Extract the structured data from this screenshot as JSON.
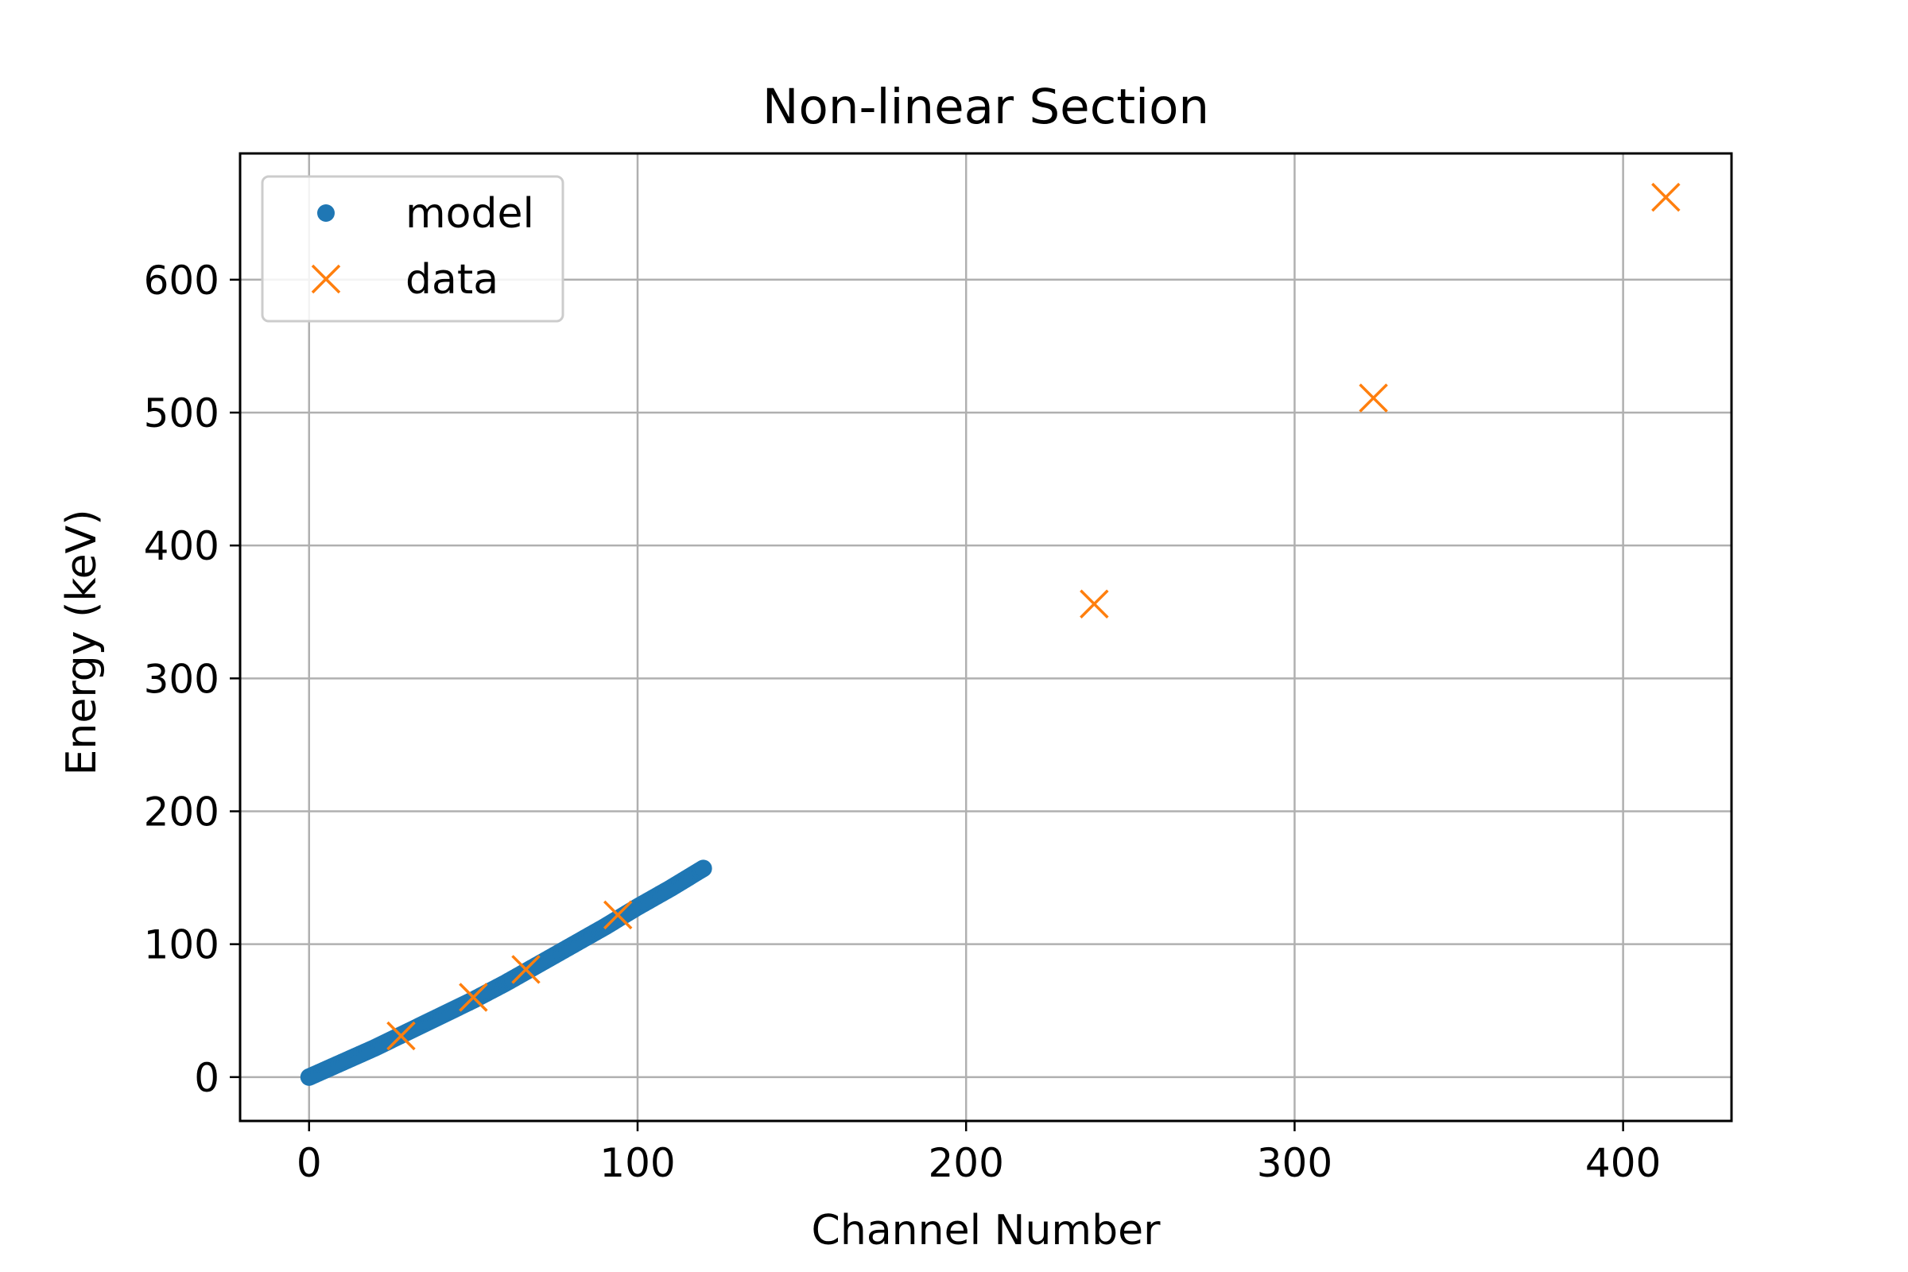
{
  "chart_data": {
    "type": "scatter",
    "title": "Non-linear Section",
    "xlabel": "Channel Number",
    "ylabel": "Energy (keV)",
    "xlim": [
      -21,
      433
    ],
    "ylim": [
      -33,
      695
    ],
    "xticks": [
      0,
      100,
      200,
      300,
      400
    ],
    "yticks": [
      0,
      100,
      200,
      300,
      400,
      500,
      600
    ],
    "grid": true,
    "legend": {
      "placement": "upper-left"
    },
    "series": [
      {
        "name": "model",
        "marker": "dot",
        "color": "#1f77b4",
        "x_range": [
          0,
          120
        ],
        "x": [
          0,
          10,
          20,
          30,
          40,
          50,
          60,
          70,
          80,
          90,
          100,
          110,
          120
        ],
        "y": [
          0,
          11,
          22,
          34,
          46,
          58,
          71,
          85,
          99,
          113,
          128,
          142,
          157
        ]
      },
      {
        "name": "data",
        "marker": "x",
        "color": "#ff7f0e",
        "x": [
          28,
          50,
          66,
          94,
          239,
          324,
          413
        ],
        "y": [
          31,
          60,
          81,
          122,
          356,
          511,
          662
        ]
      }
    ]
  }
}
